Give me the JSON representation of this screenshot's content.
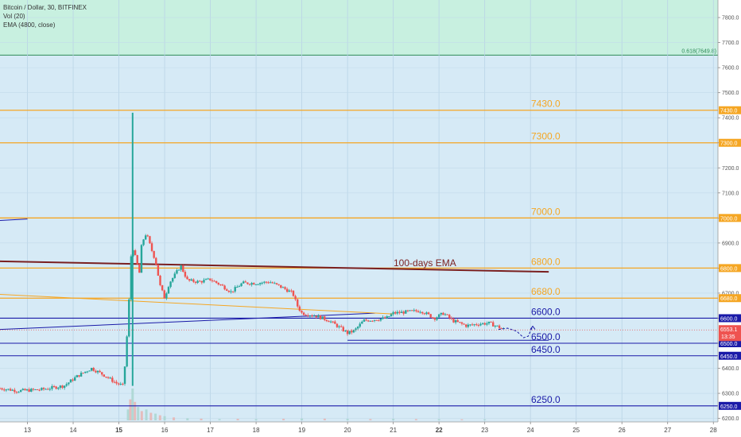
{
  "legend": {
    "symbol": "Bitcoin / Dollar, 30, BITFINEX",
    "volume": "Vol (20)",
    "ema": "EMA (4800, close)"
  },
  "chart_data": {
    "type": "candlestick",
    "symbol": "Bitcoin / Dollar",
    "interval": "30",
    "exchange": "BITFINEX",
    "colors": {
      "up": "#26a69a",
      "down": "#ef5350",
      "background": "#d6eaf6",
      "zone_above_fib": "#c8f0e0",
      "orange_level": "#f5a623",
      "blue_level": "#1a1aa8",
      "ema_line": "#7a1f1f",
      "current_price": "#ef5350",
      "fib_label": "#2e8b57"
    },
    "x_axis": {
      "ticks": [
        "13",
        "14",
        "15",
        "16",
        "17",
        "18",
        "19",
        "20",
        "21",
        "22",
        "23",
        "24",
        "25",
        "26",
        "27",
        "28"
      ],
      "bold_ticks": [
        "15",
        "22"
      ],
      "range": [
        12.4,
        28.1
      ]
    },
    "y_axis": {
      "ticks": [
        6200.0,
        6300.0,
        6400.0,
        6500.0,
        6600.0,
        6700.0,
        6800.0,
        6900.0,
        7000.0,
        7100.0,
        7200.0,
        7300.0,
        7400.0,
        7500.0,
        7600.0,
        7700.0,
        7800.0
      ],
      "tick_labels": [
        "6200.0",
        "6300.0",
        "6400.0",
        "6500.0",
        "6600.0",
        "6700.0",
        "6800.0",
        "6900.0",
        "7000.0",
        "7100.0",
        "7200.0",
        "7300.0",
        "7400.0",
        "7500.0",
        "7600.0",
        "7700.0",
        "7800.0"
      ],
      "range": [
        6186,
        7870
      ]
    },
    "fib_level": {
      "label": "0.618(7649.8)",
      "value": 7649.8
    },
    "horizontal_levels": [
      {
        "value": 7430.0,
        "label": "7430.0",
        "color": "orange",
        "badge": "7430.0"
      },
      {
        "value": 7300.0,
        "label": "7300.0",
        "color": "orange",
        "badge": "7300.0"
      },
      {
        "value": 7000.0,
        "label": "7000.0",
        "color": "orange",
        "badge": "7000.0"
      },
      {
        "value": 6800.0,
        "label": "6800.0",
        "color": "orange",
        "badge": "6800.0"
      },
      {
        "value": 6680.0,
        "label": "6680.0",
        "color": "orange",
        "badge": "6680.0"
      },
      {
        "value": 6600.0,
        "label": "6600.0",
        "color": "blue",
        "badge": "6600.0"
      },
      {
        "value": 6500.0,
        "label": "6500.0",
        "color": "blue",
        "badge": "6500.0"
      },
      {
        "value": 6450.0,
        "label": "6450.0",
        "color": "blue",
        "badge": "6450.0"
      },
      {
        "value": 6250.0,
        "label": "6250.0",
        "color": "blue",
        "badge": "6250.0"
      }
    ],
    "current_price": {
      "value": 6553.1,
      "label": "6553.1",
      "countdown": "13:35"
    },
    "annotation": {
      "text": "100-days EMA"
    },
    "ema_line": [
      [
        12.4,
        6827
      ],
      [
        24.4,
        6785
      ]
    ],
    "trendlines": [
      {
        "color": "blue",
        "points": [
          [
            12.4,
            6555
          ],
          [
            20.6,
            6620
          ]
        ]
      },
      {
        "color": "orange",
        "points": [
          [
            12.4,
            6695
          ],
          [
            21.0,
            6617
          ]
        ]
      },
      {
        "color": "blue",
        "points": [
          [
            12.4,
            6990
          ],
          [
            13.0,
            6996
          ]
        ]
      },
      {
        "color": "blue",
        "points": [
          [
            20.0,
            6512
          ],
          [
            24.4,
            6512
          ]
        ]
      }
    ],
    "projection": [
      [
        23.3,
        6555
      ],
      [
        23.5,
        6560
      ],
      [
        23.7,
        6548
      ],
      [
        23.85,
        6522
      ],
      [
        23.95,
        6528
      ],
      [
        24.05,
        6568
      ]
    ],
    "price_path": [
      [
        12.4,
        6320
      ],
      [
        12.8,
        6310
      ],
      [
        13.3,
        6315
      ],
      [
        13.8,
        6330
      ],
      [
        14.1,
        6370
      ],
      [
        14.4,
        6400
      ],
      [
        14.7,
        6370
      ],
      [
        14.95,
        6340
      ],
      [
        15.1,
        6330
      ],
      [
        15.2,
        6590
      ],
      [
        15.28,
        6900
      ],
      [
        15.35,
        6850
      ],
      [
        15.45,
        6780
      ],
      [
        15.5,
        6900
      ],
      [
        15.6,
        6940
      ],
      [
        15.7,
        6880
      ],
      [
        15.8,
        6830
      ],
      [
        15.9,
        6730
      ],
      [
        16.0,
        6680
      ],
      [
        16.1,
        6740
      ],
      [
        16.25,
        6780
      ],
      [
        16.35,
        6810
      ],
      [
        16.5,
        6750
      ],
      [
        16.75,
        6745
      ],
      [
        17.0,
        6755
      ],
      [
        17.25,
        6730
      ],
      [
        17.45,
        6705
      ],
      [
        17.7,
        6740
      ],
      [
        18.0,
        6740
      ],
      [
        18.3,
        6745
      ],
      [
        18.6,
        6720
      ],
      [
        18.8,
        6700
      ],
      [
        18.9,
        6650
      ],
      [
        19.0,
        6620
      ],
      [
        19.3,
        6610
      ],
      [
        19.6,
        6590
      ],
      [
        19.85,
        6560
      ],
      [
        20.0,
        6540
      ],
      [
        20.15,
        6550
      ],
      [
        20.35,
        6590
      ],
      [
        20.6,
        6595
      ],
      [
        20.85,
        6600
      ],
      [
        21.0,
        6620
      ],
      [
        21.3,
        6625
      ],
      [
        21.6,
        6630
      ],
      [
        21.9,
        6600
      ],
      [
        22.1,
        6620
      ],
      [
        22.3,
        6590
      ],
      [
        22.6,
        6570
      ],
      [
        22.9,
        6578
      ],
      [
        23.1,
        6580
      ],
      [
        23.3,
        6565
      ],
      [
        23.45,
        6553
      ]
    ],
    "spike": {
      "day": 15.3,
      "high": 7420,
      "low": 6330
    },
    "volume_bars": [
      [
        15.2,
        130
      ],
      [
        15.25,
        250
      ],
      [
        15.3,
        380
      ],
      [
        15.35,
        220
      ],
      [
        15.42,
        160
      ],
      [
        15.5,
        110
      ],
      [
        15.6,
        130
      ],
      [
        15.7,
        90
      ],
      [
        15.8,
        80
      ],
      [
        15.9,
        60
      ],
      [
        16.0,
        50
      ],
      [
        16.2,
        35
      ],
      [
        16.5,
        25
      ],
      [
        16.8,
        20
      ],
      [
        17.2,
        15
      ],
      [
        17.6,
        18
      ],
      [
        18.0,
        15
      ],
      [
        18.6,
        18
      ],
      [
        19.0,
        22
      ],
      [
        19.5,
        20
      ],
      [
        20.0,
        18
      ],
      [
        20.5,
        15
      ],
      [
        21.0,
        18
      ],
      [
        21.5,
        15
      ],
      [
        22.0,
        14
      ],
      [
        22.5,
        12
      ],
      [
        23.0,
        12
      ]
    ]
  }
}
